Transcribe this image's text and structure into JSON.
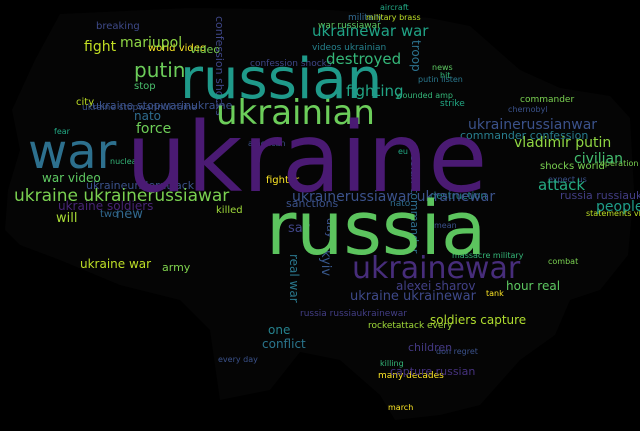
{
  "words": [
    {
      "text": "ukraine",
      "color": "#4a1a73"
    },
    {
      "text": "russia",
      "color": "#5cc45e"
    },
    {
      "text": "russian",
      "color": "#1f9a8a"
    },
    {
      "text": "war",
      "color": "#2d708e"
    },
    {
      "text": "ukrainian",
      "color": "#6ccd5a"
    },
    {
      "text": "ukrainewar",
      "color": "#472d7b"
    },
    {
      "text": "ukraine ukrainerussiawar",
      "color": "#7ad151"
    },
    {
      "text": "ukrainerussiawar ukrainewar",
      "color": "#3b528b"
    },
    {
      "text": "putin",
      "color": "#6ccd5a"
    },
    {
      "text": "destroyed",
      "color": "#35b779"
    },
    {
      "text": "fighting",
      "color": "#21a585"
    },
    {
      "text": "ukrainewar war",
      "color": "#20a386"
    },
    {
      "text": "ukrainerussianwar",
      "color": "#3b528b"
    },
    {
      "text": "vladimir putin",
      "color": "#90d743"
    },
    {
      "text": "civilian",
      "color": "#44bf70"
    },
    {
      "text": "attack",
      "color": "#25ac82"
    },
    {
      "text": "people",
      "color": "#1f9e89"
    },
    {
      "text": "amp",
      "color": "#2c728e"
    },
    {
      "text": "ukraine war",
      "color": "#bddf26"
    },
    {
      "text": "mariupol",
      "color": "#8ed645"
    },
    {
      "text": "fight",
      "color": "#c2df23"
    },
    {
      "text": "force",
      "color": "#6ece58"
    },
    {
      "text": "nato",
      "color": "#2f6c8e"
    },
    {
      "text": "will",
      "color": "#a8db34"
    },
    {
      "text": "new",
      "color": "#31688e"
    },
    {
      "text": "war video",
      "color": "#5ec962"
    },
    {
      "text": "ukraine soldiers",
      "color": "#482576"
    },
    {
      "text": "killed",
      "color": "#9fda3a"
    },
    {
      "text": "say",
      "color": "#404688"
    },
    {
      "text": "kyiv",
      "color": "#38588c"
    },
    {
      "text": "real war",
      "color": "#2a788e"
    },
    {
      "text": "ukraine ukrainewar",
      "color": "#3e4989"
    },
    {
      "text": "alexei sharov",
      "color": "#424086"
    },
    {
      "text": "hour real",
      "color": "#5ec962"
    },
    {
      "text": "soldiers capture",
      "color": "#b0dd2f"
    },
    {
      "text": "russia russiaukrainewar",
      "color": "#433e85"
    },
    {
      "text": "conflict",
      "color": "#2a768e"
    },
    {
      "text": "one",
      "color": "#26828e"
    },
    {
      "text": "children",
      "color": "#443983"
    },
    {
      "text": "capture russian",
      "color": "#46327e"
    },
    {
      "text": "army",
      "color": "#7fd34e"
    },
    {
      "text": "russian commander",
      "color": "#2e6e8e"
    },
    {
      "text": "commander confession",
      "color": "#287d8e"
    },
    {
      "text": "shocks world",
      "color": "#7ad151"
    },
    {
      "text": "sanctions",
      "color": "#3b528b"
    },
    {
      "text": "troop",
      "color": "#2c728e"
    },
    {
      "text": "video",
      "color": "#7ad151"
    },
    {
      "text": "world video",
      "color": "#fde725"
    },
    {
      "text": "city",
      "color": "#bddf26"
    },
    {
      "text": "stop",
      "color": "#4ac16d"
    },
    {
      "text": "breaking",
      "color": "#3e4a89"
    },
    {
      "text": "military",
      "color": "#31688e"
    },
    {
      "text": "destruction",
      "color": "#24868e"
    },
    {
      "text": "confession shocks",
      "color": "#3f4788"
    },
    {
      "text": "videos ukrainian",
      "color": "#26828e"
    },
    {
      "text": "ukraine stopwarinukraine",
      "color": "#3b528b"
    },
    {
      "text": "two",
      "color": "#31688e"
    },
    {
      "text": "ukraineunderattack",
      "color": "#3b528b"
    },
    {
      "text": "day",
      "color": "#3b528b"
    },
    {
      "text": "war russiawar",
      "color": "#5ec962"
    },
    {
      "text": "fighter",
      "color": "#fde725"
    },
    {
      "text": "commander",
      "color": "#7ad151"
    },
    {
      "text": "strike",
      "color": "#22a884"
    },
    {
      "text": "rocketattack every",
      "color": "#a0da39"
    },
    {
      "text": "news",
      "color": "#5ec962"
    },
    {
      "text": "hit",
      "color": "#35b779"
    },
    {
      "text": "military brass",
      "color": "#bddf26"
    },
    {
      "text": "aircraft",
      "color": "#22a884"
    },
    {
      "text": "putin listen",
      "color": "#2a788e"
    },
    {
      "text": "don regret",
      "color": "#3b528b"
    },
    {
      "text": "many decades",
      "color": "#fde725"
    },
    {
      "text": "every day",
      "color": "#3b528b"
    },
    {
      "text": "statements vladimir",
      "color": "#bddf26"
    },
    {
      "text": "massacre military",
      "color": "#35b779"
    },
    {
      "text": "american",
      "color": "#3b528b"
    },
    {
      "text": "wounded amp",
      "color": "#35b779"
    },
    {
      "text": "eu",
      "color": "#22a884"
    },
    {
      "text": "mean",
      "color": "#3b528b"
    },
    {
      "text": "killing",
      "color": "#35b779"
    },
    {
      "text": "chernobyl",
      "color": "#3b528b"
    },
    {
      "text": "combat",
      "color": "#7ad151"
    },
    {
      "text": "tank",
      "color": "#fde725"
    },
    {
      "text": "fear",
      "color": "#22a884"
    },
    {
      "text": "expect us",
      "color": "#3b528b"
    },
    {
      "text": "nuclear",
      "color": "#35b779"
    },
    {
      "text": "operation",
      "color": "#7ad151"
    },
    {
      "text": "march",
      "color": "#fde725"
    },
    {
      "text": "surrender",
      "color": "#3b528b"
    }
  ]
}
